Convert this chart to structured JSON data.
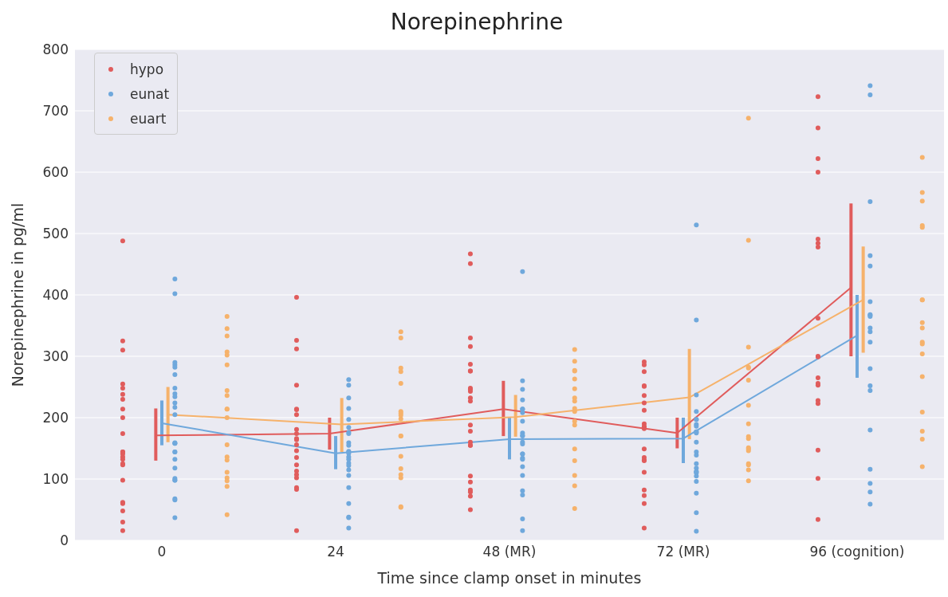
{
  "chart_data": {
    "type": "scatter",
    "title": "Norepinephrine",
    "xlabel": "Time since clamp onset in minutes",
    "ylabel": "Norepinephrine in pg/ml",
    "categories": [
      "0",
      "24",
      "48 (MR)",
      "72 (MR)",
      "96 (cognition)"
    ],
    "ylim": [
      0,
      800
    ],
    "yticks": [
      0,
      100,
      200,
      300,
      400,
      500,
      600,
      700,
      800
    ],
    "grid": "y",
    "legend": "top left",
    "marker": "circle",
    "series": [
      {
        "name": "hypo",
        "color": "#e05c5c",
        "x": [
          "0",
          "0",
          "0",
          "0",
          "0",
          "0",
          "0",
          "0",
          "0",
          "0",
          "0",
          "0",
          "0",
          "0",
          "0",
          "0",
          "0",
          "0",
          "0",
          "0",
          "0",
          "0",
          "0",
          "24",
          "24",
          "24",
          "24",
          "24",
          "24",
          "24",
          "24",
          "24",
          "24",
          "24",
          "24",
          "24",
          "24",
          "24",
          "24",
          "24",
          "24",
          "24",
          "24",
          "24",
          "48 (MR)",
          "48 (MR)",
          "48 (MR)",
          "48 (MR)",
          "48 (MR)",
          "48 (MR)",
          "48 (MR)",
          "48 (MR)",
          "48 (MR)",
          "48 (MR)",
          "48 (MR)",
          "48 (MR)",
          "48 (MR)",
          "48 (MR)",
          "48 (MR)",
          "48 (MR)",
          "48 (MR)",
          "48 (MR)",
          "48 (MR)",
          "48 (MR)",
          "48 (MR)",
          "48 (MR)",
          "48 (MR)",
          "72 (MR)",
          "72 (MR)",
          "72 (MR)",
          "72 (MR)",
          "72 (MR)",
          "72 (MR)",
          "72 (MR)",
          "72 (MR)",
          "72 (MR)",
          "72 (MR)",
          "72 (MR)",
          "72 (MR)",
          "72 (MR)",
          "72 (MR)",
          "72 (MR)",
          "72 (MR)",
          "72 (MR)",
          "72 (MR)",
          "72 (MR)",
          "72 (MR)",
          "72 (MR)",
          "96 (cognition)",
          "96 (cognition)",
          "96 (cognition)",
          "96 (cognition)",
          "96 (cognition)",
          "96 (cognition)",
          "96 (cognition)",
          "96 (cognition)",
          "96 (cognition)",
          "96 (cognition)",
          "96 (cognition)",
          "96 (cognition)",
          "96 (cognition)",
          "96 (cognition)",
          "96 (cognition)",
          "96 (cognition)",
          "96 (cognition)",
          "96 (cognition)"
        ],
        "values": [
          488,
          325,
          310,
          255,
          248,
          238,
          230,
          214,
          200,
          174,
          144,
          141,
          144,
          136,
          132,
          125,
          123,
          98,
          60,
          62,
          48,
          30,
          16,
          396,
          326,
          312,
          253,
          214,
          213,
          205,
          181,
          174,
          166,
          164,
          156,
          146,
          135,
          123,
          113,
          107,
          102,
          86,
          83,
          16,
          467,
          451,
          330,
          316,
          287,
          276,
          276,
          246,
          248,
          243,
          232,
          227,
          188,
          178,
          160,
          155,
          155,
          105,
          95,
          82,
          79,
          72,
          50,
          291,
          286,
          275,
          252,
          251,
          236,
          224,
          212,
          190,
          185,
          185,
          182,
          149,
          135,
          131,
          130,
          111,
          82,
          73,
          60,
          20,
          723,
          672,
          622,
          600,
          478,
          484,
          491,
          362,
          299,
          300,
          265,
          253,
          256,
          228,
          223,
          147,
          101,
          34
        ]
      },
      {
        "name": "eunat",
        "color": "#6fa8dc",
        "x": [
          "0",
          "0",
          "0",
          "0",
          "0",
          "0",
          "0",
          "0",
          "0",
          "0",
          "0",
          "0",
          "0",
          "0",
          "0",
          "0",
          "0",
          "0",
          "0",
          "0",
          "0",
          "0",
          "0",
          "0",
          "0",
          "24",
          "24",
          "24",
          "24",
          "24",
          "24",
          "24",
          "24",
          "24",
          "24",
          "24",
          "24",
          "24",
          "24",
          "24",
          "24",
          "24",
          "24",
          "24",
          "24",
          "24",
          "24",
          "24",
          "24",
          "48 (MR)",
          "48 (MR)",
          "48 (MR)",
          "48 (MR)",
          "48 (MR)",
          "48 (MR)",
          "48 (MR)",
          "48 (MR)",
          "48 (MR)",
          "48 (MR)",
          "48 (MR)",
          "48 (MR)",
          "48 (MR)",
          "48 (MR)",
          "48 (MR)",
          "48 (MR)",
          "48 (MR)",
          "48 (MR)",
          "48 (MR)",
          "48 (MR)",
          "48 (MR)",
          "48 (MR)",
          "48 (MR)",
          "72 (MR)",
          "72 (MR)",
          "72 (MR)",
          "72 (MR)",
          "72 (MR)",
          "72 (MR)",
          "72 (MR)",
          "72 (MR)",
          "72 (MR)",
          "72 (MR)",
          "72 (MR)",
          "72 (MR)",
          "72 (MR)",
          "72 (MR)",
          "72 (MR)",
          "72 (MR)",
          "72 (MR)",
          "72 (MR)",
          "72 (MR)",
          "72 (MR)",
          "72 (MR)",
          "72 (MR)",
          "72 (MR)",
          "72 (MR)",
          "96 (cognition)",
          "96 (cognition)",
          "96 (cognition)",
          "96 (cognition)",
          "96 (cognition)",
          "96 (cognition)",
          "96 (cognition)",
          "96 (cognition)",
          "96 (cognition)",
          "96 (cognition)",
          "96 (cognition)",
          "96 (cognition)",
          "96 (cognition)",
          "96 (cognition)",
          "96 (cognition)",
          "96 (cognition)",
          "96 (cognition)",
          "96 (cognition)",
          "96 (cognition)",
          "96 (cognition)"
        ],
        "values": [
          426,
          402,
          286,
          290,
          282,
          270,
          248,
          239,
          234,
          224,
          217,
          205,
          158,
          158,
          159,
          144,
          144,
          132,
          118,
          98,
          98,
          101,
          68,
          66,
          37,
          262,
          253,
          232,
          215,
          197,
          184,
          176,
          174,
          159,
          155,
          145,
          144,
          142,
          136,
          132,
          126,
          122,
          115,
          106,
          86,
          60,
          38,
          37,
          20,
          438,
          260,
          246,
          229,
          214,
          214,
          208,
          194,
          175,
          170,
          171,
          160,
          157,
          141,
          141,
          134,
          132,
          120,
          106,
          81,
          74,
          35,
          16,
          514,
          359,
          237,
          210,
          197,
          197,
          189,
          186,
          177,
          175,
          177,
          160,
          144,
          139,
          125,
          118,
          112,
          112,
          110,
          105,
          96,
          77,
          45,
          15,
          741,
          726,
          552,
          464,
          447,
          389,
          367,
          368,
          365,
          340,
          346,
          323,
          280,
          252,
          244,
          180,
          116,
          93,
          79,
          59
        ]
      },
      {
        "name": "euart",
        "color": "#f6b26b",
        "x": [
          "0",
          "0",
          "0",
          "0",
          "0",
          "0",
          "0",
          "0",
          "0",
          "0",
          "0",
          "0",
          "0",
          "0",
          "0",
          "0",
          "0",
          "0",
          "0",
          "24",
          "24",
          "24",
          "24",
          "24",
          "24",
          "24",
          "24",
          "24",
          "24",
          "24",
          "24",
          "24",
          "24",
          "24",
          "24",
          "24",
          "48 (MR)",
          "48 (MR)",
          "48 (MR)",
          "48 (MR)",
          "48 (MR)",
          "48 (MR)",
          "48 (MR)",
          "48 (MR)",
          "48 (MR)",
          "48 (MR)",
          "48 (MR)",
          "48 (MR)",
          "48 (MR)",
          "48 (MR)",
          "48 (MR)",
          "48 (MR)",
          "48 (MR)",
          "72 (MR)",
          "72 (MR)",
          "72 (MR)",
          "72 (MR)",
          "72 (MR)",
          "72 (MR)",
          "72 (MR)",
          "72 (MR)",
          "72 (MR)",
          "72 (MR)",
          "72 (MR)",
          "72 (MR)",
          "72 (MR)",
          "72 (MR)",
          "72 (MR)",
          "72 (MR)",
          "72 (MR)",
          "96 (cognition)",
          "96 (cognition)",
          "96 (cognition)",
          "96 (cognition)",
          "96 (cognition)",
          "96 (cognition)",
          "96 (cognition)",
          "96 (cognition)",
          "96 (cognition)",
          "96 (cognition)",
          "96 (cognition)",
          "96 (cognition)",
          "96 (cognition)",
          "96 (cognition)",
          "96 (cognition)",
          "96 (cognition)",
          "96 (cognition)"
        ],
        "values": [
          365,
          345,
          333,
          307,
          302,
          286,
          244,
          236,
          214,
          214,
          200,
          156,
          136,
          131,
          111,
          102,
          97,
          88,
          42,
          340,
          330,
          281,
          275,
          256,
          210,
          207,
          198,
          204,
          170,
          170,
          137,
          117,
          107,
          102,
          54,
          55,
          311,
          292,
          276,
          277,
          263,
          247,
          232,
          227,
          215,
          210,
          194,
          188,
          149,
          130,
          106,
          89,
          52,
          688,
          489,
          315,
          282,
          281,
          261,
          220,
          190,
          169,
          166,
          149,
          146,
          151,
          123,
          125,
          115,
          97,
          624,
          567,
          553,
          513,
          510,
          392,
          392,
          355,
          346,
          323,
          320,
          304,
          267,
          209,
          178,
          165,
          120
        ]
      },
      {
        "type": "line",
        "marker": "none",
        "color": "#e05c5c",
        "values": [
          171,
          174,
          214,
          175,
          412
        ],
        "errors": [
          [
            130,
            215
          ],
          [
            148,
            200
          ],
          [
            170,
            260
          ],
          [
            150,
            200
          ],
          [
            300,
            549
          ]
        ]
      },
      {
        "type": "line",
        "marker": "none",
        "color": "#6fa8dc",
        "values": [
          191,
          142,
          165,
          166,
          334
        ],
        "errors": [
          [
            155,
            228
          ],
          [
            116,
            170
          ],
          [
            132,
            200
          ],
          [
            126,
            200
          ],
          [
            265,
            400
          ]
        ]
      },
      {
        "type": "line",
        "marker": "none",
        "color": "#f6b26b",
        "values": [
          205,
          189,
          201,
          233,
          392
        ],
        "errors": [
          [
            160,
            250
          ],
          [
            144,
            232
          ],
          [
            169,
            237
          ],
          [
            165,
            312
          ],
          [
            306,
            479
          ]
        ]
      }
    ]
  }
}
